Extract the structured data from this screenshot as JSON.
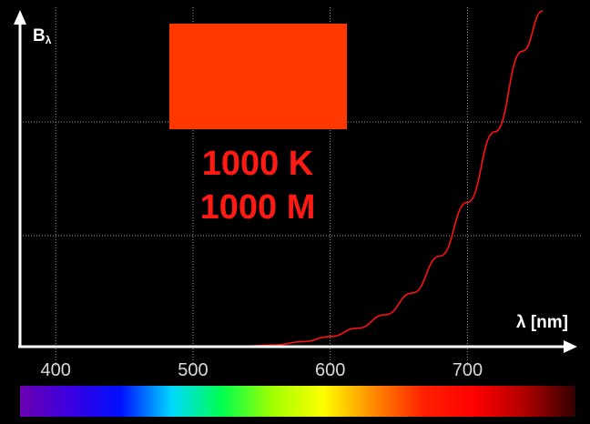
{
  "chart_data": {
    "type": "line",
    "xlabel": "λ [nm]",
    "ylabel_main": "B",
    "ylabel_sub": "λ",
    "x_ticks": [
      400,
      500,
      600,
      700
    ],
    "xlim": [
      374,
      780
    ],
    "series": [
      {
        "color": "#ff1010",
        "x": [
          530,
          560,
          580,
          600,
          620,
          640,
          660,
          680,
          700,
          720,
          740,
          755
        ],
        "y": [
          0.0,
          0.005,
          0.015,
          0.03,
          0.055,
          0.095,
          0.16,
          0.27,
          0.43,
          0.64,
          0.88,
          1.0
        ]
      }
    ],
    "grid": true
  },
  "readout": {
    "temperature": "1000 K",
    "distance": "1000 M"
  },
  "color_swatch": "#ff3800",
  "spectrum_bar": {
    "colors": [
      "#6b00b0",
      "#3a00e0",
      "#0010ff",
      "#00d8ff",
      "#00ff50",
      "#a0ff00",
      "#ffff00",
      "#ff8a00",
      "#ff2000",
      "#ff0000",
      "#b00000",
      "#300000"
    ]
  }
}
